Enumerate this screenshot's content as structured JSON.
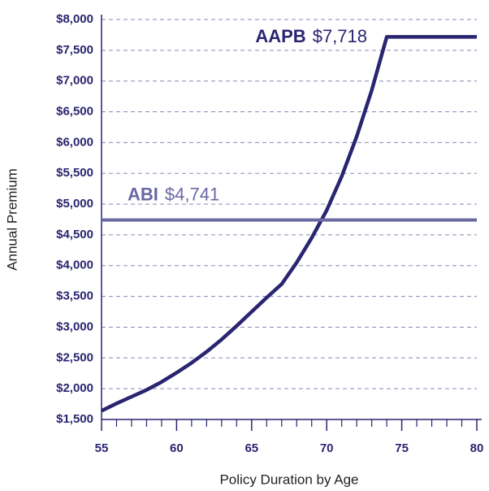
{
  "chart_data": {
    "type": "line",
    "xlabel": "Policy Duration by Age",
    "ylabel": "Annual Premium",
    "x": [
      55,
      56,
      57,
      58,
      59,
      60,
      61,
      62,
      63,
      64,
      65,
      66,
      67,
      68,
      69,
      70,
      71,
      72,
      73,
      74,
      75,
      76,
      77,
      78,
      79,
      80
    ],
    "series": [
      {
        "name": "AAPB",
        "end_label": "$7,718",
        "color": "#2a2570",
        "values": [
          1640,
          1760,
          1870,
          1980,
          2110,
          2260,
          2420,
          2600,
          2800,
          3020,
          3250,
          3480,
          3700,
          4050,
          4450,
          4900,
          5450,
          6100,
          6850,
          7718,
          7718,
          7718,
          7718,
          7718,
          7718,
          7718
        ]
      },
      {
        "name": "ABI",
        "end_label": "$4,741",
        "color": "#6b68a3",
        "values": [
          4741,
          4741,
          4741,
          4741,
          4741,
          4741,
          4741,
          4741,
          4741,
          4741,
          4741,
          4741,
          4741,
          4741,
          4741,
          4741,
          4741,
          4741,
          4741,
          4741,
          4741,
          4741,
          4741,
          4741,
          4741,
          4741
        ]
      }
    ],
    "xlim": [
      55,
      80
    ],
    "xticks": [
      55,
      60,
      65,
      70,
      75,
      80
    ],
    "xminorticks": [
      56,
      57,
      58,
      59,
      61,
      62,
      63,
      64,
      66,
      67,
      68,
      69,
      71,
      72,
      73,
      74,
      76,
      77,
      78,
      79
    ],
    "ylim": [
      1500,
      8000
    ],
    "yticks": [
      {
        "value": 1500,
        "label": "$1,500"
      },
      {
        "value": 2000,
        "label": "$2,000"
      },
      {
        "value": 2500,
        "label": "$2,500"
      },
      {
        "value": 3000,
        "label": "$3,000"
      },
      {
        "value": 3500,
        "label": "$3,500"
      },
      {
        "value": 4000,
        "label": "$4,000"
      },
      {
        "value": 4500,
        "label": "$4,500"
      },
      {
        "value": 5000,
        "label": "$5,000"
      },
      {
        "value": 5500,
        "label": "$5,500"
      },
      {
        "value": 6000,
        "label": "$6,000"
      },
      {
        "value": 6500,
        "label": "$6,500"
      },
      {
        "value": 7000,
        "label": "$7,000"
      },
      {
        "value": 7500,
        "label": "$7,500"
      },
      {
        "value": 8000,
        "label": "$8,000"
      }
    ],
    "grid": true
  }
}
